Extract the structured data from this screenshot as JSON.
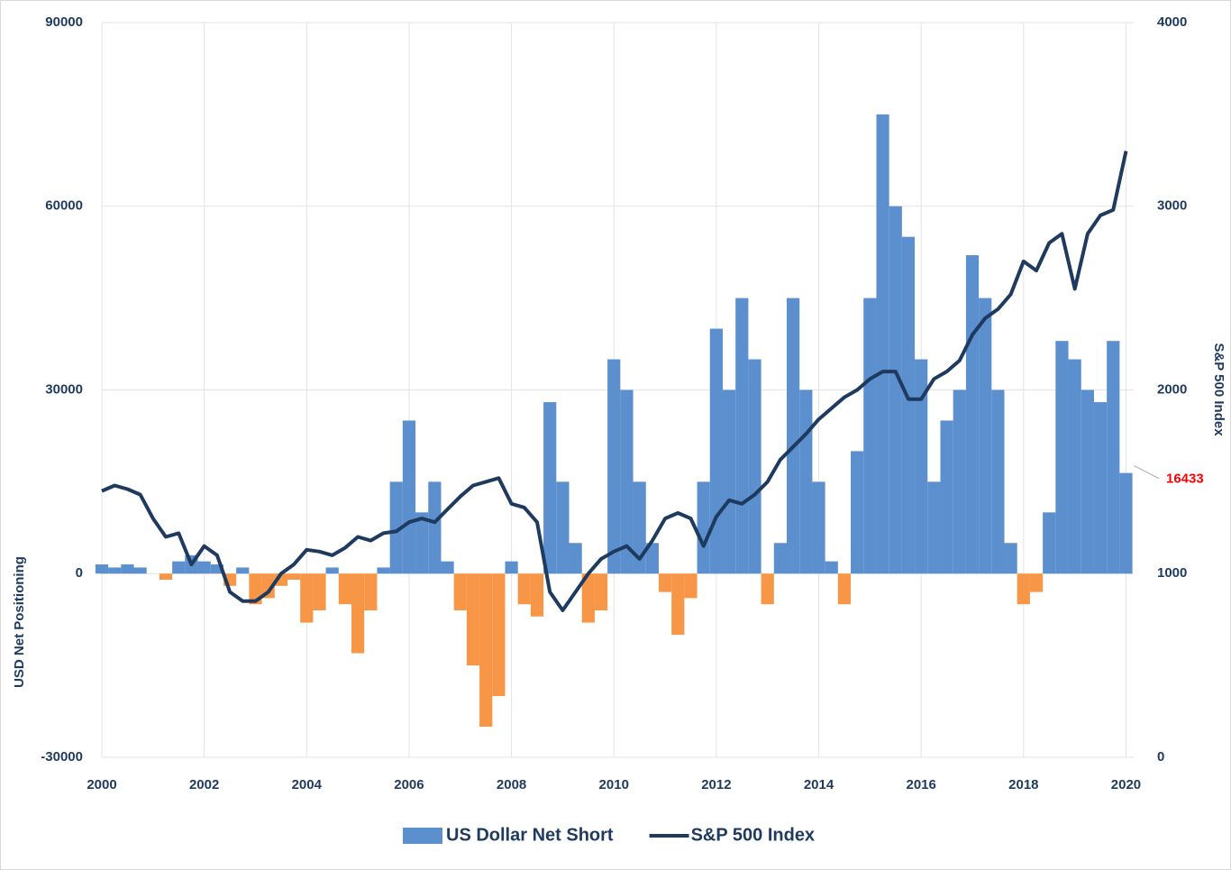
{
  "chart_data": {
    "type": "bar_line",
    "y_label": "USD Net Positioning",
    "y2_label": "S&P 500 Index",
    "annotation": "16433",
    "x": [
      2000,
      2000.25,
      2000.5,
      2000.75,
      2001,
      2001.25,
      2001.5,
      2001.75,
      2002,
      2002.25,
      2002.5,
      2002.75,
      2003,
      2003.25,
      2003.5,
      2003.75,
      2004,
      2004.25,
      2004.5,
      2004.75,
      2005,
      2005.25,
      2005.5,
      2005.75,
      2006,
      2006.25,
      2006.5,
      2006.75,
      2007,
      2007.25,
      2007.5,
      2007.75,
      2008,
      2008.25,
      2008.5,
      2008.75,
      2009,
      2009.25,
      2009.5,
      2009.75,
      2010,
      2010.25,
      2010.5,
      2010.75,
      2011,
      2011.25,
      2011.5,
      2011.75,
      2012,
      2012.25,
      2012.5,
      2012.75,
      2013,
      2013.25,
      2013.5,
      2013.75,
      2014,
      2014.25,
      2014.5,
      2014.75,
      2015,
      2015.25,
      2015.5,
      2015.75,
      2016,
      2016.25,
      2016.5,
      2016.75,
      2017,
      2017.25,
      2017.5,
      2017.75,
      2018,
      2018.25,
      2018.5,
      2018.75,
      2019,
      2019.25,
      2019.5,
      2019.75,
      2020
    ],
    "series": [
      {
        "name": "US Dollar Net Short",
        "type": "bar",
        "axis": "y",
        "color": "#5b8fce",
        "negative_color": "#f79646",
        "values": [
          1500,
          1000,
          1500,
          1000,
          0,
          -1000,
          2000,
          3000,
          2000,
          1500,
          -2000,
          1000,
          -5000,
          -4000,
          -2000,
          -1000,
          -8000,
          -6000,
          1000,
          -5000,
          -13000,
          -6000,
          1000,
          15000,
          25000,
          10000,
          15000,
          2000,
          -6000,
          -15000,
          -25000,
          -20000,
          2000,
          -5000,
          -7000,
          28000,
          15000,
          5000,
          -8000,
          -6000,
          35000,
          30000,
          15000,
          5000,
          -3000,
          -10000,
          -4000,
          15000,
          40000,
          30000,
          45000,
          35000,
          -5000,
          5000,
          45000,
          30000,
          15000,
          2000,
          -5000,
          20000,
          45000,
          75000,
          60000,
          55000,
          35000,
          15000,
          25000,
          30000,
          52000,
          45000,
          30000,
          5000,
          -5000,
          -3000,
          10000,
          38000,
          35000,
          30000,
          28000,
          38000,
          16433
        ]
      },
      {
        "name": "S&P 500 Index",
        "type": "line",
        "axis": "y2",
        "color": "#1f3a5f",
        "values": [
          1450,
          1480,
          1460,
          1430,
          1300,
          1200,
          1220,
          1050,
          1150,
          1100,
          900,
          850,
          850,
          900,
          1000,
          1050,
          1130,
          1120,
          1100,
          1140,
          1200,
          1180,
          1220,
          1230,
          1280,
          1300,
          1280,
          1350,
          1420,
          1480,
          1500,
          1520,
          1380,
          1360,
          1280,
          900,
          800,
          900,
          1000,
          1080,
          1120,
          1150,
          1080,
          1180,
          1300,
          1330,
          1300,
          1150,
          1310,
          1400,
          1380,
          1430,
          1500,
          1620,
          1690,
          1760,
          1840,
          1900,
          1960,
          2000,
          2060,
          2100,
          2100,
          1950,
          1950,
          2060,
          2100,
          2160,
          2300,
          2390,
          2440,
          2520,
          2700,
          2650,
          2800,
          2850,
          2550,
          2850,
          2950,
          2980,
          3300
        ]
      }
    ],
    "xlim": [
      2000,
      2020.15
    ],
    "xticks": [
      2000,
      2002,
      2004,
      2006,
      2008,
      2010,
      2012,
      2014,
      2016,
      2018,
      2020
    ],
    "ylim": [
      -30000,
      90000
    ],
    "yticks": [
      -30000,
      0,
      30000,
      60000,
      90000
    ],
    "y2lim": [
      0,
      4000
    ],
    "y2ticks": [
      0,
      1000,
      2000,
      3000,
      4000
    ],
    "grid": true,
    "legend": "bottom",
    "annotation_color": "#ff0000"
  }
}
